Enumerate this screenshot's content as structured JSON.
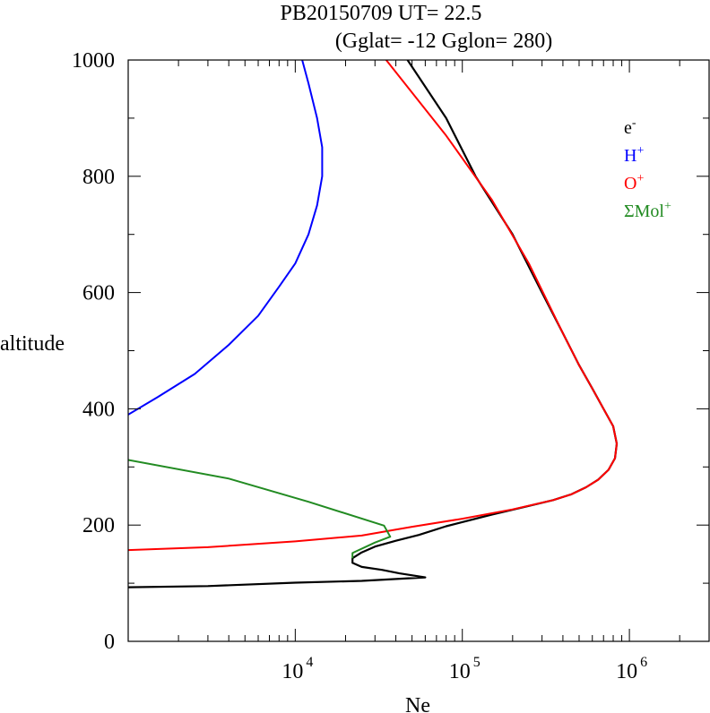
{
  "chart_data": {
    "type": "line",
    "title_line1": "PB20150709   UT=  22.5",
    "title_line2": "(Gglat= -12   Gglon=  280)",
    "xlabel": "Ne",
    "ylabel": "altitude",
    "x_scale": "log",
    "xlim": [
      1000,
      3000000
    ],
    "ylim": [
      0,
      1000
    ],
    "x_ticks": [
      {
        "value": 10000,
        "base": "10",
        "exp": "4"
      },
      {
        "value": 100000,
        "base": "10",
        "exp": "5"
      },
      {
        "value": 1000000,
        "base": "10",
        "exp": "6"
      }
    ],
    "y_ticks": [
      "0",
      "200",
      "400",
      "600",
      "800",
      "1000"
    ],
    "y_tick_values": [
      0,
      200,
      400,
      600,
      800,
      1000
    ],
    "legend_position": "top-right",
    "series": [
      {
        "name": "e-",
        "label_base": "e",
        "label_sup": "-",
        "color": "#000000",
        "points": [
          [
            1000,
            93
          ],
          [
            3000,
            95
          ],
          [
            10000,
            101
          ],
          [
            25000,
            104
          ],
          [
            45000,
            108
          ],
          [
            60000,
            110
          ],
          [
            42000,
            117
          ],
          [
            33000,
            123
          ],
          [
            25000,
            128
          ],
          [
            22000,
            135
          ],
          [
            22000,
            143
          ],
          [
            25000,
            153
          ],
          [
            30000,
            163
          ],
          [
            40000,
            173
          ],
          [
            55000,
            183
          ],
          [
            80000,
            198
          ],
          [
            150000,
            218
          ],
          [
            250000,
            233
          ],
          [
            350000,
            243
          ],
          [
            450000,
            253
          ],
          [
            550000,
            265
          ],
          [
            650000,
            278
          ],
          [
            750000,
            295
          ],
          [
            820000,
            315
          ],
          [
            840000,
            340
          ],
          [
            800000,
            370
          ],
          [
            700000,
            400
          ],
          [
            600000,
            435
          ],
          [
            500000,
            475
          ],
          [
            400000,
            530
          ],
          [
            300000,
            600
          ],
          [
            200000,
            700
          ],
          [
            120000,
            800
          ],
          [
            80000,
            900
          ],
          [
            47000,
            1000
          ]
        ]
      },
      {
        "name": "H+",
        "label_base": "H",
        "label_sup": "+",
        "color": "#0000ff",
        "points": [
          [
            1000,
            390
          ],
          [
            1500,
            420
          ],
          [
            2500,
            460
          ],
          [
            4000,
            510
          ],
          [
            6000,
            560
          ],
          [
            8000,
            610
          ],
          [
            10000,
            650
          ],
          [
            12000,
            700
          ],
          [
            13500,
            750
          ],
          [
            14500,
            800
          ],
          [
            14500,
            850
          ],
          [
            13500,
            900
          ],
          [
            12000,
            960
          ],
          [
            11000,
            1000
          ]
        ]
      },
      {
        "name": "O+",
        "label_base": "O",
        "label_sup": "+",
        "color": "#ff0000",
        "points": [
          [
            1000,
            157
          ],
          [
            3000,
            162
          ],
          [
            10000,
            172
          ],
          [
            25000,
            182
          ],
          [
            50000,
            197
          ],
          [
            100000,
            211
          ],
          [
            200000,
            227
          ],
          [
            350000,
            243
          ],
          [
            450000,
            253
          ],
          [
            550000,
            265
          ],
          [
            650000,
            278
          ],
          [
            750000,
            295
          ],
          [
            820000,
            315
          ],
          [
            840000,
            340
          ],
          [
            800000,
            370
          ],
          [
            700000,
            400
          ],
          [
            600000,
            435
          ],
          [
            500000,
            475
          ],
          [
            400000,
            530
          ],
          [
            250000,
            650
          ],
          [
            150000,
            760
          ],
          [
            80000,
            870
          ],
          [
            35000,
            1000
          ]
        ]
      },
      {
        "name": "ΣMol+",
        "label_base": "ΣMol",
        "label_sup": "+",
        "color": "#228b22",
        "points": [
          [
            1000,
            312
          ],
          [
            4000,
            280
          ],
          [
            12000,
            240
          ],
          [
            34000,
            199
          ],
          [
            37000,
            180
          ],
          [
            30000,
            170
          ],
          [
            22000,
            152
          ],
          [
            22000,
            143
          ]
        ]
      }
    ]
  }
}
